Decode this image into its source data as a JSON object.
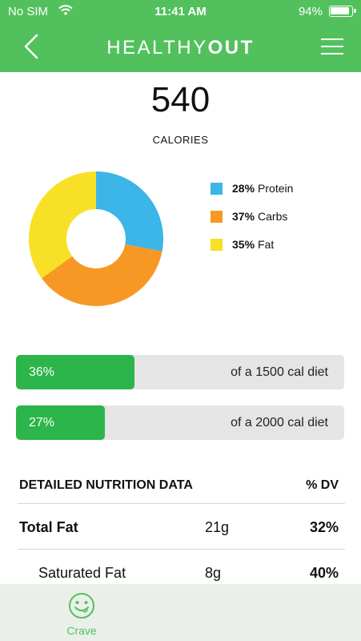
{
  "status_bar": {
    "carrier": "No SIM",
    "time": "11:41 AM",
    "battery": "94%"
  },
  "header": {
    "brand_light": "HEALTHY",
    "brand_bold": "OUT"
  },
  "summary": {
    "calories": "540",
    "calories_label": "CALORIES"
  },
  "macros": [
    {
      "pct": "28%",
      "label": "Protein",
      "value": 28,
      "color": "#3cb5e8"
    },
    {
      "pct": "37%",
      "label": "Carbs",
      "value": 37,
      "color": "#f79824"
    },
    {
      "pct": "35%",
      "label": "Fat",
      "value": 35,
      "color": "#f8e026"
    }
  ],
  "diet_bars": [
    {
      "fill_text": "36%",
      "fraction": 0.36,
      "label": "of a 1500 cal diet"
    },
    {
      "fill_text": "27%",
      "fraction": 0.27,
      "label": "of a 2000 cal diet"
    }
  ],
  "nutrition": {
    "header": {
      "name": "DETAILED NUTRITION DATA",
      "dv": "% DV"
    },
    "rows": [
      {
        "name": "Total Fat",
        "amount": "21g",
        "dv": "32%"
      },
      {
        "name": "Saturated Fat",
        "amount": "8g",
        "dv": "40%"
      }
    ]
  },
  "bottom_nav": {
    "crave_label": "Crave",
    "crave_icon": "smiley-face-icon"
  },
  "colors": {
    "brand_green": "#52c15d",
    "bar_green": "#2bb54a"
  }
}
